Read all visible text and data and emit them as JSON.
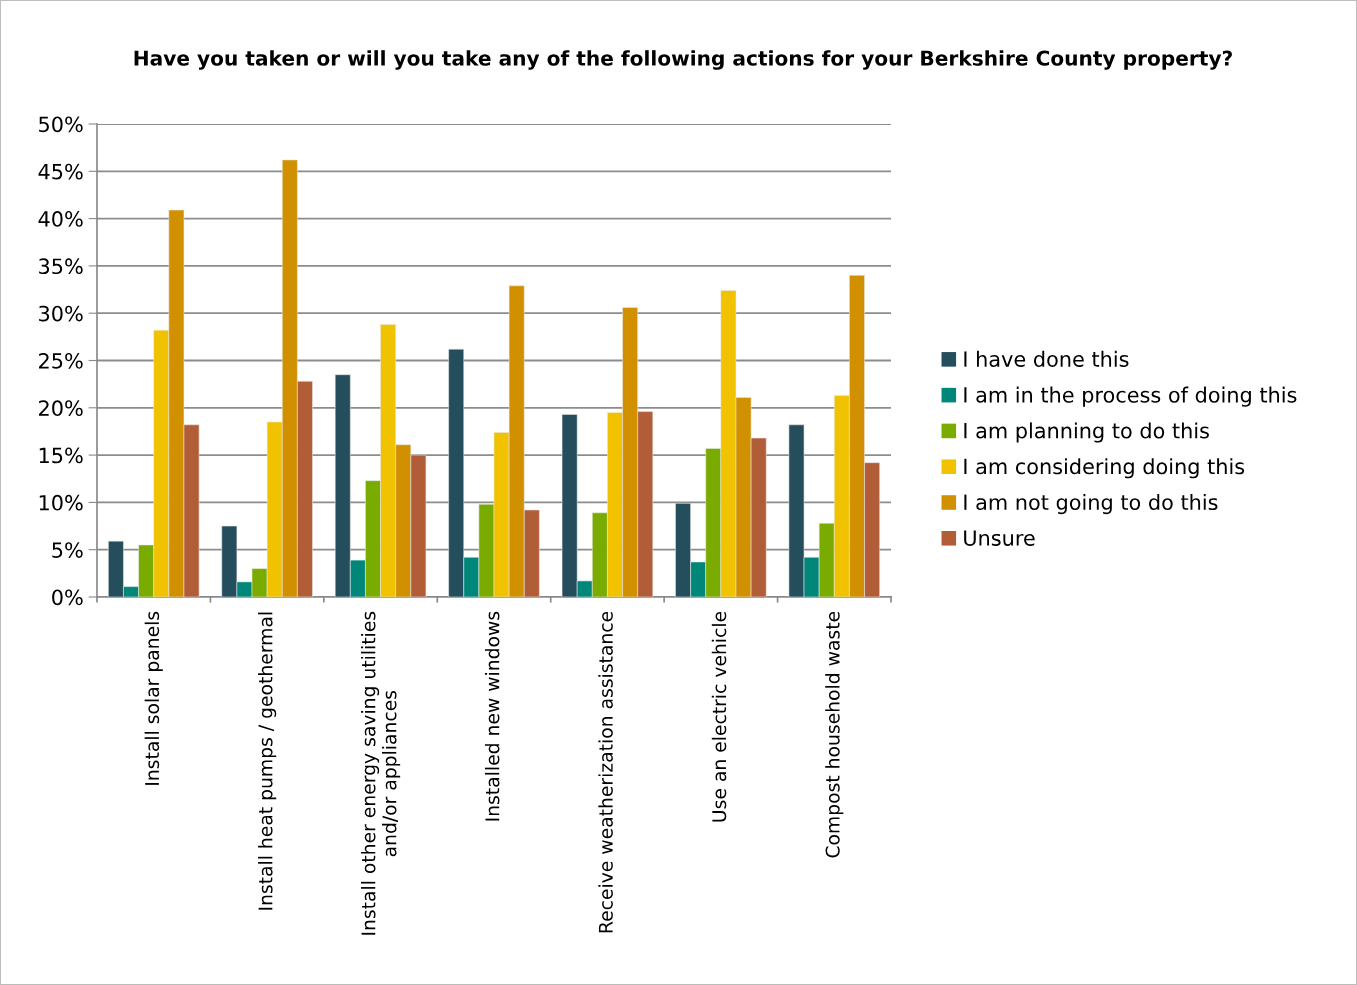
{
  "chart_data": {
    "type": "bar",
    "title": "Have you taken or will you take any of the following actions for your Berkshire County property?",
    "categories": [
      "Install solar panels",
      "Install heat pumps / geothermal",
      "Install other energy saving utilities\nand/or appliances",
      "Installed new windows",
      "Receive weatherization assistance",
      "Use an electric vehicle",
      "Compost household waste"
    ],
    "series": [
      {
        "name": "I have done this",
        "color": "#244e5b",
        "values": [
          5.9,
          7.5,
          23.5,
          26.2,
          19.3,
          9.9,
          18.2
        ]
      },
      {
        "name": "I am in the process of doing this",
        "color": "#00877a",
        "values": [
          1.1,
          1.6,
          3.9,
          4.2,
          1.7,
          3.7,
          4.2
        ]
      },
      {
        "name": "I am planning to do this",
        "color": "#7aab00",
        "values": [
          5.5,
          3.0,
          12.3,
          9.8,
          8.9,
          15.7,
          7.8
        ]
      },
      {
        "name": "I am considering doing this",
        "color": "#f0c200",
        "values": [
          28.2,
          18.5,
          28.8,
          17.4,
          19.5,
          32.4,
          21.3
        ]
      },
      {
        "name": "I am not going to do this",
        "color": "#d09000",
        "values": [
          40.9,
          46.2,
          16.1,
          32.9,
          30.6,
          21.1,
          34.0
        ]
      },
      {
        "name": "Unsure",
        "color": "#b15e38",
        "values": [
          18.2,
          22.8,
          15.0,
          9.2,
          19.6,
          16.8,
          14.2
        ]
      }
    ],
    "ylim": [
      0,
      50
    ],
    "yticks": [
      {
        "value": 0,
        "label": "0%"
      },
      {
        "value": 5,
        "label": "5%"
      },
      {
        "value": 10,
        "label": "10%"
      },
      {
        "value": 15,
        "label": "15%"
      },
      {
        "value": 20,
        "label": "20%"
      },
      {
        "value": 25,
        "label": "25%"
      },
      {
        "value": 30,
        "label": "30%"
      },
      {
        "value": 35,
        "label": "35%"
      },
      {
        "value": 40,
        "label": "40%"
      },
      {
        "value": 45,
        "label": "45%"
      },
      {
        "value": 50,
        "label": "50%"
      }
    ],
    "grid": "y",
    "legend": "right"
  }
}
